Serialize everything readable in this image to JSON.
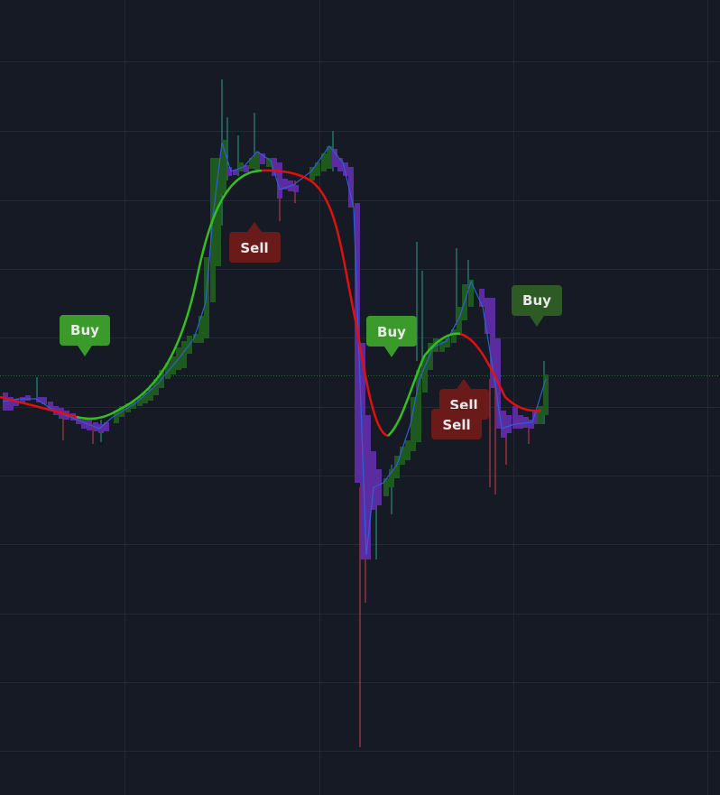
{
  "signals": [
    {
      "label": "Buy"
    },
    {
      "label": "Sell"
    },
    {
      "label": "Buy"
    },
    {
      "label": "Sell"
    },
    {
      "label": "Sell"
    },
    {
      "label": "Buy"
    }
  ]
}
